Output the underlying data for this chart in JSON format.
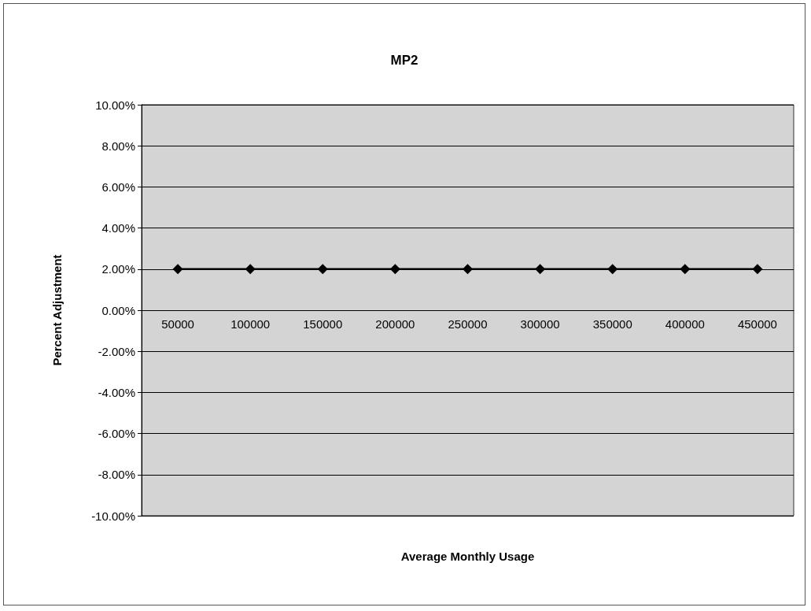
{
  "chart_data": {
    "type": "line",
    "title": "MP2",
    "xlabel": "Average Monthly Usage",
    "ylabel": "Percent Adjustment",
    "categories": [
      "50000",
      "100000",
      "150000",
      "200000",
      "250000",
      "300000",
      "350000",
      "400000",
      "450000"
    ],
    "series": [
      {
        "color": "#000000",
        "values": [
          2,
          2,
          2,
          2,
          2,
          2,
          2,
          2,
          2
        ]
      }
    ],
    "ylim": [
      -10,
      10
    ],
    "yticks": [
      {
        "value": -10,
        "label": "-10.00%"
      },
      {
        "value": -8,
        "label": "-8.00%"
      },
      {
        "value": -6,
        "label": "-6.00%"
      },
      {
        "value": -4,
        "label": "-4.00%"
      },
      {
        "value": -2,
        "label": "-2.00%"
      },
      {
        "value": 0,
        "label": "0.00%"
      },
      {
        "value": 2,
        "label": "2.00%"
      },
      {
        "value": 4,
        "label": "4.00%"
      },
      {
        "value": 6,
        "label": "6.00%"
      },
      {
        "value": 8,
        "label": "8.00%"
      },
      {
        "value": 10,
        "label": "10.00%"
      }
    ],
    "grid": "y",
    "marker": "diamond",
    "line_style": "solid"
  }
}
